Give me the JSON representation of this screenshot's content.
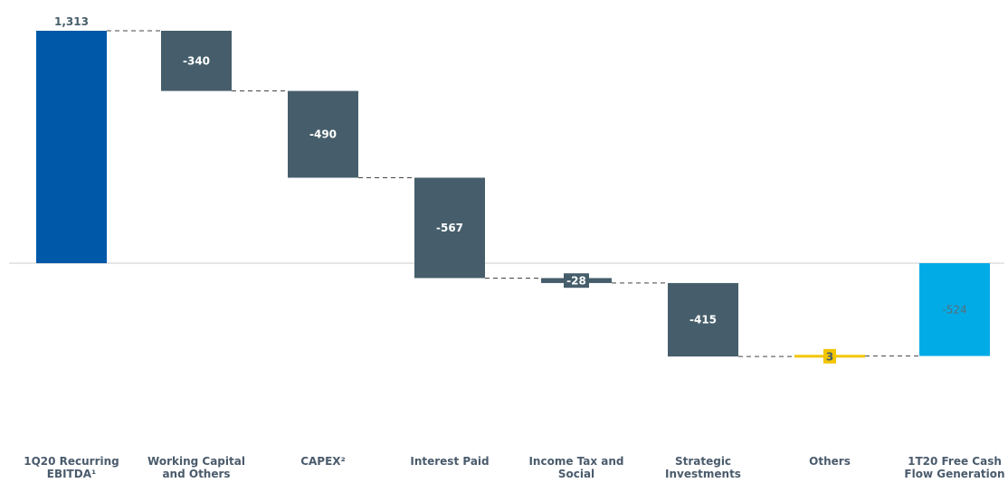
{
  "chart_data": {
    "type": "waterfall",
    "title": "",
    "xlabel": "",
    "ylabel": "",
    "categories": [
      "1Q20 Recurring EBITDA¹",
      "Working Capital and Others",
      "CAPEX²",
      "Interest Paid",
      "Income Tax and Social",
      "Strategic Investments",
      "Others",
      "1T20 Free Cash Flow Generation"
    ],
    "category_lines": [
      [
        "1Q20 Recurring",
        "EBITDA¹"
      ],
      [
        "Working Capital",
        "and Others"
      ],
      [
        "CAPEX²"
      ],
      [
        "Interest Paid"
      ],
      [
        "Income Tax and",
        "Social"
      ],
      [
        "Strategic",
        "Investments"
      ],
      [
        "Others"
      ],
      [
        "1T20 Free Cash",
        "Flow Generation"
      ]
    ],
    "values": [
      1313,
      -340,
      -490,
      -567,
      -28,
      -415,
      3,
      -524
    ],
    "labels": [
      "1,313",
      "-340",
      "-490",
      "-567",
      "-28",
      "-415",
      "3",
      "-524"
    ],
    "kinds": [
      "total",
      "delta",
      "delta",
      "delta",
      "delta",
      "delta",
      "delta",
      "total"
    ],
    "ylim": [
      -1050,
      1400
    ],
    "grid": false,
    "colors": {
      "start_total": "#0059a8",
      "negative": "#465e6b",
      "positive": "#f2c500",
      "end_total": "#00abe6",
      "connector": "#444444",
      "zero_line": "#cccccc",
      "label_dark": "#465e6b",
      "label_light": "#ffffff",
      "end_label": "#5a6e7a"
    }
  }
}
